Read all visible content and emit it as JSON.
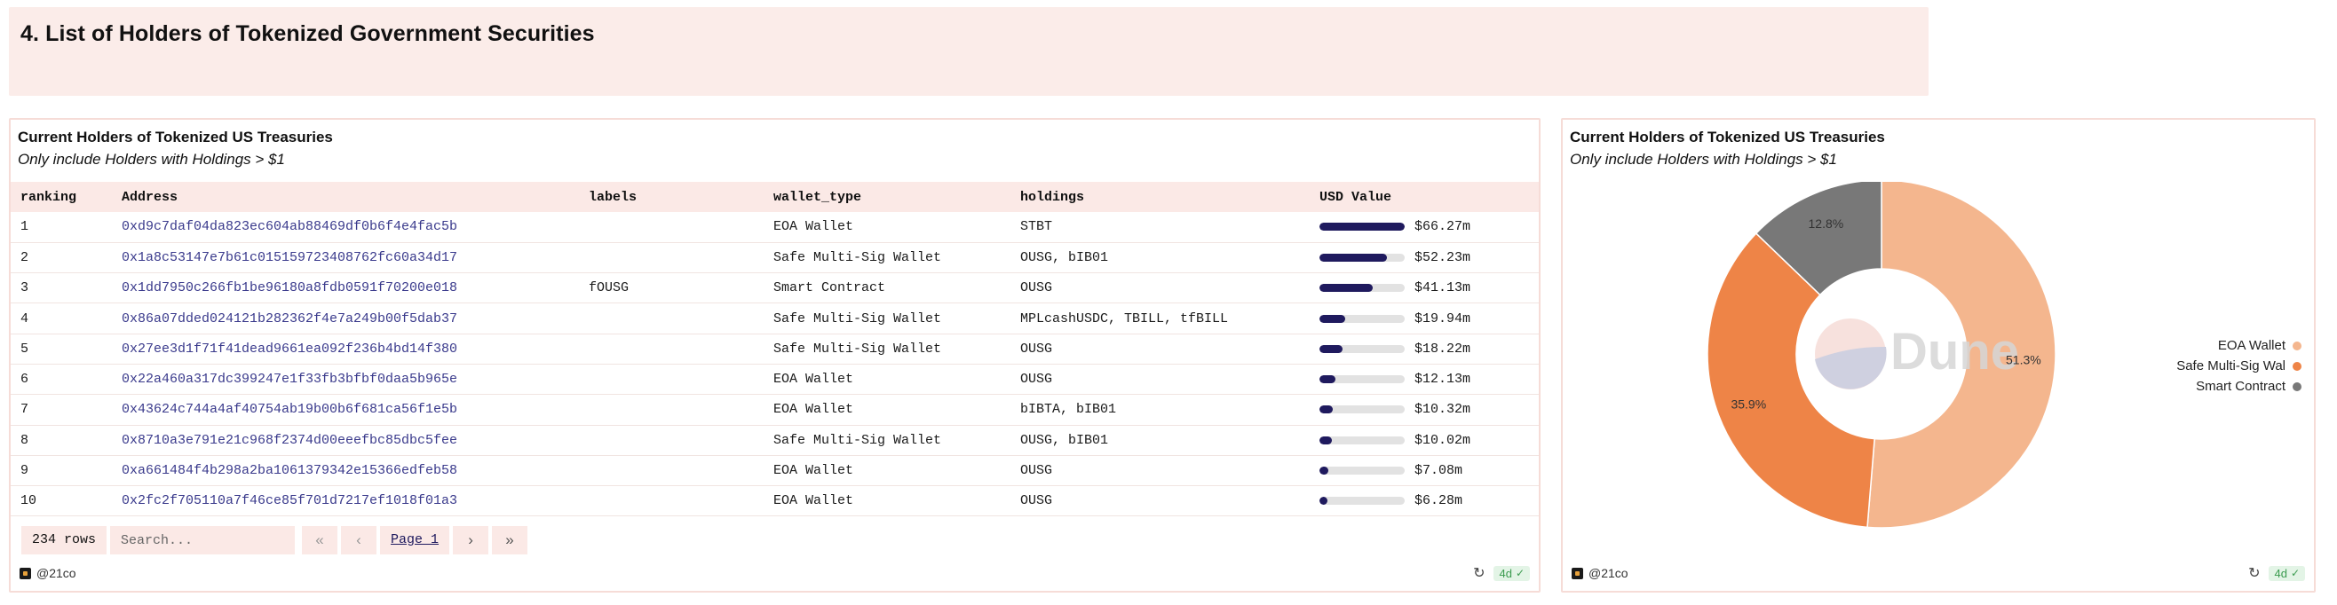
{
  "section": {
    "title": "4. List of Holders of Tokenized Government Securities"
  },
  "table_panel": {
    "title": "Current Holders of Tokenized US Treasuries",
    "subtitle": "Only include Holders with Holdings > $1",
    "columns": [
      "ranking",
      "Address",
      "labels",
      "wallet_type",
      "holdings",
      "USD Value"
    ],
    "rows": [
      {
        "ranking": "1",
        "address": "0xd9c7daf04da823ec604ab88469df0b6f4e4fac5b",
        "labels": "",
        "wallet_type": "EOA Wallet",
        "holdings": "STBT",
        "usd_value": "$66.27m",
        "usd_fraction": 1.0
      },
      {
        "ranking": "2",
        "address": "0x1a8c53147e7b61c015159723408762fc60a34d17",
        "labels": "",
        "wallet_type": "Safe Multi-Sig Wallet",
        "holdings": "OUSG, bIB01",
        "usd_value": "$52.23m",
        "usd_fraction": 0.788
      },
      {
        "ranking": "3",
        "address": "0x1dd7950c266fb1be96180a8fdb0591f70200e018",
        "labels": "fOUSG",
        "wallet_type": "Smart Contract",
        "holdings": "OUSG",
        "usd_value": "$41.13m",
        "usd_fraction": 0.621
      },
      {
        "ranking": "4",
        "address": "0x86a07dded024121b282362f4e7a249b00f5dab37",
        "labels": "",
        "wallet_type": "Safe Multi-Sig Wallet",
        "holdings": "MPLcashUSDC, TBILL, tfBILL",
        "usd_value": "$19.94m",
        "usd_fraction": 0.301
      },
      {
        "ranking": "5",
        "address": "0x27ee3d1f71f41dead9661ea092f236b4bd14f380",
        "labels": "",
        "wallet_type": "Safe Multi-Sig Wallet",
        "holdings": "OUSG",
        "usd_value": "$18.22m",
        "usd_fraction": 0.275
      },
      {
        "ranking": "6",
        "address": "0x22a460a317dc399247e1f33fb3bfbf0daa5b965e",
        "labels": "",
        "wallet_type": "EOA Wallet",
        "holdings": "OUSG",
        "usd_value": "$12.13m",
        "usd_fraction": 0.183
      },
      {
        "ranking": "7",
        "address": "0x43624c744a4af40754ab19b00b6f681ca56f1e5b",
        "labels": "",
        "wallet_type": "EOA Wallet",
        "holdings": "bIBTA, bIB01",
        "usd_value": "$10.32m",
        "usd_fraction": 0.156
      },
      {
        "ranking": "8",
        "address": "0x8710a3e791e21c968f2374d00eeefbc85dbc5fee",
        "labels": "",
        "wallet_type": "Safe Multi-Sig Wallet",
        "holdings": "OUSG, bIB01",
        "usd_value": "$10.02m",
        "usd_fraction": 0.151
      },
      {
        "ranking": "9",
        "address": "0xa661484f4b298a2ba1061379342e15366edfeb58",
        "labels": "",
        "wallet_type": "EOA Wallet",
        "holdings": "OUSG",
        "usd_value": "$7.08m",
        "usd_fraction": 0.107
      },
      {
        "ranking": "10",
        "address": "0x2fc2f705110a7f46ce85f701d7217ef1018f01a3",
        "labels": "",
        "wallet_type": "EOA Wallet",
        "holdings": "OUSG",
        "usd_value": "$6.28m",
        "usd_fraction": 0.095
      }
    ],
    "pager": {
      "rows_count": "234 rows",
      "search_placeholder": "Search...",
      "page_label": "Page 1"
    },
    "footer": {
      "author": "@21co",
      "age": "4d"
    },
    "colors": {
      "bar": "#1f1a5e",
      "track": "#e2e2e2"
    }
  },
  "pie_panel": {
    "title": "Current Holders of Tokenized US Treasuries",
    "subtitle": "Only include Holders with Holdings > $1",
    "watermark": "Dune",
    "footer": {
      "author": "@21co",
      "age": "4d"
    },
    "chart_data": {
      "type": "pie",
      "donut": true,
      "legend_position": "right",
      "slices": [
        {
          "label": "EOA Wallet",
          "value": 51.3,
          "value_label": "51.3%",
          "color": "#f4b68e"
        },
        {
          "label": "Safe Multi-Sig Wal",
          "value": 35.9,
          "value_label": "35.9%",
          "color": "#ee8447"
        },
        {
          "label": "Smart Contract",
          "value": 12.8,
          "value_label": "12.8%",
          "color": "#787878"
        }
      ]
    }
  }
}
